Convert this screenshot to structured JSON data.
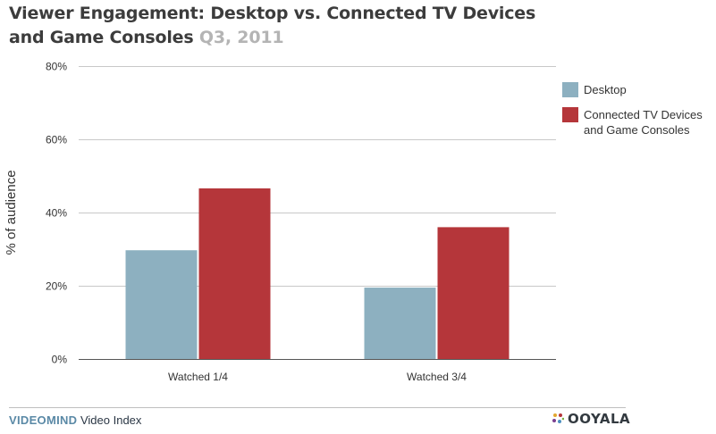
{
  "title": {
    "line1": "Viewer Engagement: Desktop vs. Connected TV Devices",
    "line2": "and Game Consoles",
    "period": "Q3, 2011"
  },
  "footer": {
    "brand_strong": "VIDEOMIND",
    "brand_rest": " Video Index",
    "logo_text": "OOYALA"
  },
  "colors": {
    "desktop": "#8db0c0",
    "connected": "#b5363a",
    "grid": "#c8c8c8",
    "axis": "#555555",
    "text": "#333333"
  },
  "chart_data": {
    "type": "bar",
    "categories": [
      "Watched 1/4",
      "Watched 3/4"
    ],
    "series": [
      {
        "name": "Desktop",
        "values": [
          29.7,
          19.5
        ]
      },
      {
        "name": "Connected TV Devices and Game Consoles",
        "values": [
          46.6,
          36.0
        ]
      }
    ],
    "ylabel": "% of audience",
    "ylim": [
      0,
      80
    ],
    "yticks": [
      0,
      20,
      40,
      60,
      80
    ],
    "ytick_labels": [
      "0%",
      "20%",
      "40%",
      "60%",
      "80%"
    ],
    "legend": [
      {
        "lines": [
          "Desktop"
        ]
      },
      {
        "lines": [
          "Connected TV Devices",
          "and Game Consoles"
        ]
      }
    ],
    "legend_position": "right",
    "grid": true
  }
}
